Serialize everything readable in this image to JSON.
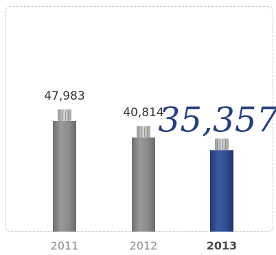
{
  "chart_data": {
    "type": "bar",
    "categories": [
      "2011",
      "2012",
      "2013"
    ],
    "values": [
      47983,
      40814,
      35357
    ],
    "value_labels": [
      "47,983",
      "40,814",
      "35,357"
    ],
    "highlight_index": 2,
    "title": "",
    "xlabel": "",
    "ylabel": "",
    "ylim": [
      0,
      47983
    ],
    "grid": false,
    "legend": "none",
    "colors": {
      "bar": "#8c8c8c",
      "bar_highlight": "#2e4a8f",
      "label_highlight": "#263f7d"
    }
  }
}
